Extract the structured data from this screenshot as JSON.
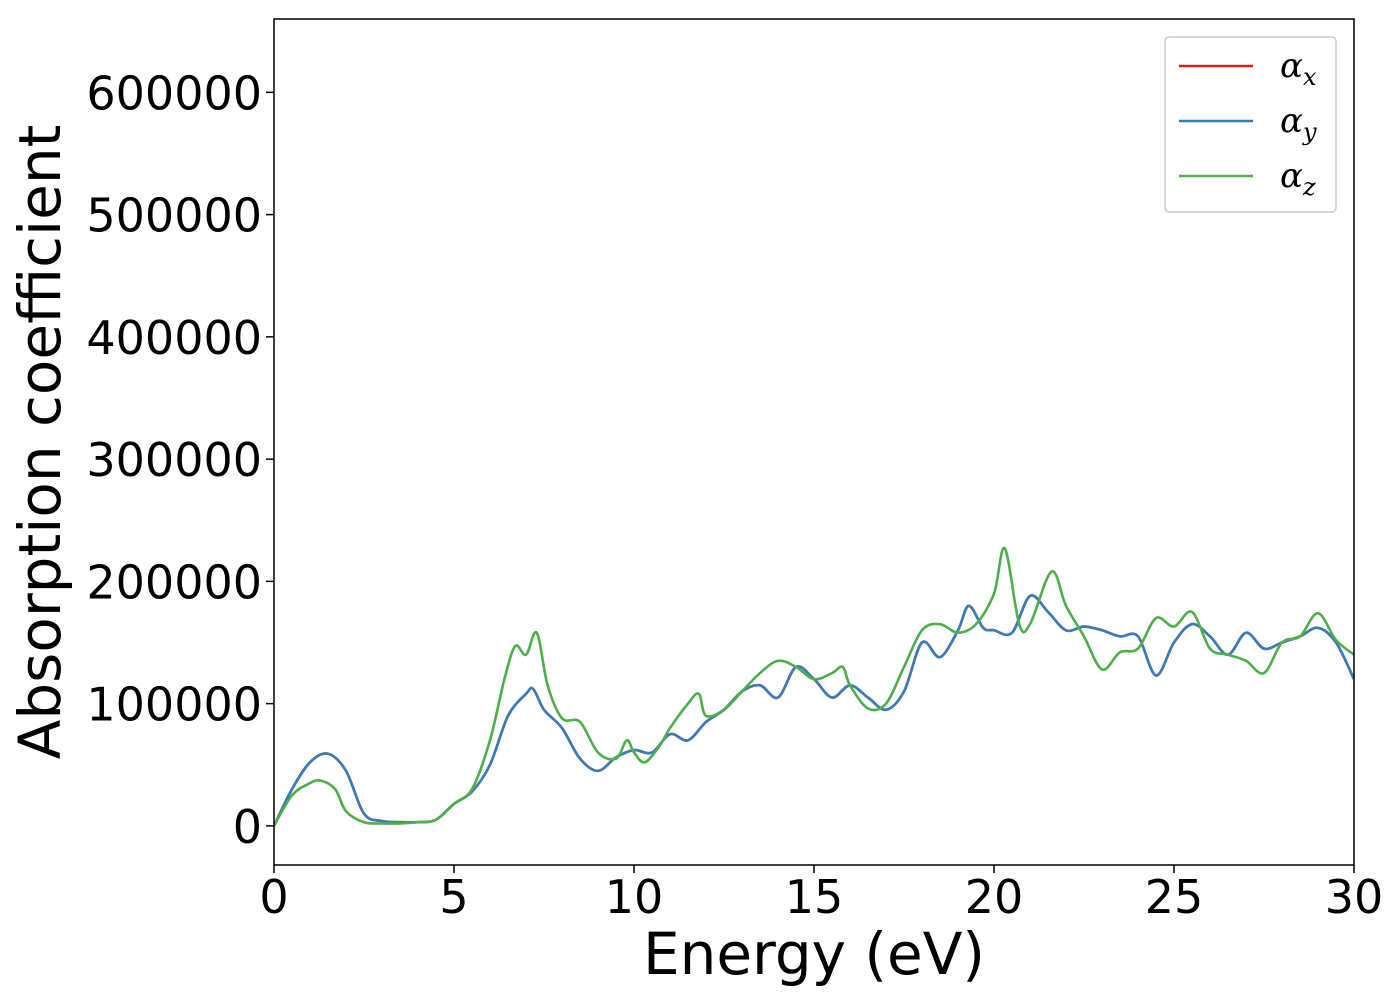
{
  "chart_data": {
    "type": "line",
    "title": "",
    "xlabel": "Energy (eV)",
    "ylabel": "Absorption coefficient",
    "xlim": [
      0,
      30
    ],
    "ylim": [
      -32000,
      660000
    ],
    "xticks": [
      0,
      5,
      10,
      15,
      20,
      25,
      30
    ],
    "xtick_labels": [
      "0",
      "5",
      "10",
      "15",
      "20",
      "25",
      "30"
    ],
    "yticks": [
      0,
      100000,
      200000,
      300000,
      400000,
      500000,
      600000
    ],
    "ytick_labels": [
      "0",
      "100000",
      "200000",
      "300000",
      "400000",
      "500000",
      "600000"
    ],
    "grid": false,
    "legend_position": "top-right",
    "series": [
      {
        "name": "α_x",
        "color": "#e41a1c",
        "x": [
          0,
          0.5,
          1.0,
          1.5,
          2.0,
          2.5,
          3.0,
          3.5,
          4.0,
          4.5,
          5.0,
          5.5,
          6.0,
          6.5,
          7.0,
          7.2,
          7.5,
          8.0,
          8.5,
          9.0,
          9.5,
          10.0,
          10.5,
          11.0,
          11.5,
          12.0,
          12.5,
          13.0,
          13.5,
          14.0,
          14.5,
          15.0,
          15.5,
          16.0,
          16.5,
          17.0,
          17.5,
          18.0,
          18.5,
          19.0,
          19.3,
          19.7,
          20.0,
          20.5,
          21.0,
          21.5,
          22.0,
          22.5,
          23.0,
          23.5,
          24.0,
          24.5,
          25.0,
          25.5,
          26.0,
          26.5,
          27.0,
          27.5,
          28.0,
          28.5,
          29.0,
          29.5,
          30.0
        ],
        "y": [
          0,
          30000,
          52000,
          59000,
          45000,
          10000,
          4000,
          3000,
          3000,
          5000,
          18000,
          28000,
          50000,
          90000,
          108000,
          112000,
          95000,
          80000,
          55000,
          45000,
          56000,
          62000,
          60000,
          75000,
          70000,
          85000,
          95000,
          110000,
          115000,
          105000,
          130000,
          120000,
          105000,
          115000,
          105000,
          95000,
          110000,
          150000,
          138000,
          160000,
          180000,
          162000,
          160000,
          158000,
          188000,
          175000,
          160000,
          163000,
          160000,
          155000,
          155000,
          123000,
          150000,
          165000,
          155000,
          140000,
          158000,
          145000,
          150000,
          155000,
          162000,
          150000,
          120000
        ]
      },
      {
        "name": "α_y",
        "color": "#377eb8",
        "x": [
          0,
          0.5,
          1.0,
          1.5,
          2.0,
          2.5,
          3.0,
          3.5,
          4.0,
          4.5,
          5.0,
          5.5,
          6.0,
          6.5,
          7.0,
          7.2,
          7.5,
          8.0,
          8.5,
          9.0,
          9.5,
          10.0,
          10.5,
          11.0,
          11.5,
          12.0,
          12.5,
          13.0,
          13.5,
          14.0,
          14.5,
          15.0,
          15.5,
          16.0,
          16.5,
          17.0,
          17.5,
          18.0,
          18.5,
          19.0,
          19.3,
          19.7,
          20.0,
          20.5,
          21.0,
          21.5,
          22.0,
          22.5,
          23.0,
          23.5,
          24.0,
          24.5,
          25.0,
          25.5,
          26.0,
          26.5,
          27.0,
          27.5,
          28.0,
          28.5,
          29.0,
          29.5,
          30.0
        ],
        "y": [
          0,
          30000,
          52000,
          59000,
          45000,
          10000,
          4000,
          3000,
          3000,
          5000,
          18000,
          28000,
          50000,
          90000,
          108000,
          112000,
          95000,
          80000,
          55000,
          45000,
          56000,
          62000,
          60000,
          75000,
          70000,
          85000,
          95000,
          110000,
          115000,
          105000,
          130000,
          120000,
          105000,
          115000,
          105000,
          95000,
          110000,
          150000,
          138000,
          160000,
          180000,
          162000,
          160000,
          158000,
          188000,
          175000,
          160000,
          163000,
          160000,
          155000,
          155000,
          123000,
          150000,
          165000,
          155000,
          140000,
          158000,
          145000,
          150000,
          155000,
          162000,
          150000,
          120000
        ]
      },
      {
        "name": "α_z",
        "color": "#4daf4a",
        "x": [
          0,
          0.5,
          1.0,
          1.3,
          1.7,
          2.0,
          2.5,
          3.0,
          3.5,
          4.0,
          4.5,
          5.0,
          5.5,
          6.0,
          6.4,
          6.7,
          7.0,
          7.3,
          7.6,
          8.0,
          8.5,
          9.0,
          9.5,
          9.8,
          10.0,
          10.3,
          10.7,
          11.0,
          11.5,
          11.8,
          12.0,
          12.5,
          13.0,
          13.5,
          14.0,
          14.5,
          15.0,
          15.5,
          15.8,
          16.0,
          16.5,
          17.0,
          17.5,
          18.0,
          18.5,
          19.0,
          19.5,
          20.0,
          20.3,
          20.7,
          21.0,
          21.6,
          22.0,
          22.5,
          23.0,
          23.5,
          24.0,
          24.5,
          25.0,
          25.5,
          26.0,
          26.5,
          27.0,
          27.5,
          28.0,
          28.5,
          29.0,
          29.5,
          30.0
        ],
        "y": [
          0,
          25000,
          35000,
          37000,
          30000,
          12000,
          3000,
          2000,
          2000,
          3000,
          5000,
          18000,
          30000,
          70000,
          120000,
          147000,
          140000,
          158000,
          115000,
          88000,
          85000,
          60000,
          55000,
          70000,
          60000,
          52000,
          65000,
          80000,
          100000,
          108000,
          90000,
          95000,
          110000,
          125000,
          135000,
          130000,
          120000,
          125000,
          130000,
          115000,
          96000,
          100000,
          130000,
          160000,
          165000,
          158000,
          165000,
          190000,
          227000,
          165000,
          165000,
          208000,
          180000,
          155000,
          128000,
          142000,
          145000,
          170000,
          163000,
          175000,
          145000,
          140000,
          135000,
          125000,
          150000,
          155000,
          174000,
          152000,
          140000
        ]
      }
    ],
    "legend": {
      "entries": [
        {
          "label": "α",
          "sub": "x",
          "color": "#e41a1c"
        },
        {
          "label": "α",
          "sub": "y",
          "color": "#377eb8"
        },
        {
          "label": "α",
          "sub": "z",
          "color": "#4daf4a"
        }
      ]
    }
  }
}
